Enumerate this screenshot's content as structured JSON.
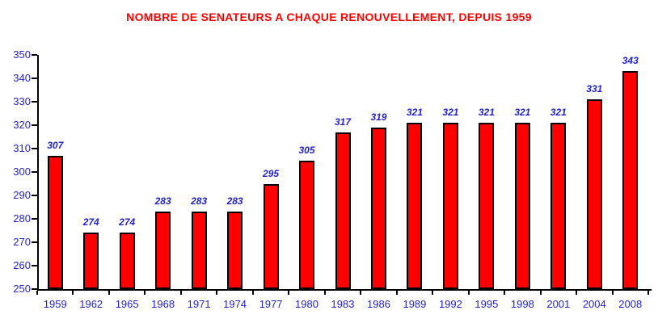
{
  "title": "NOMBRE DE SENATEURS A CHAQUE RENOUVELLEMENT, DEPUIS 1959",
  "chart_data": {
    "type": "bar",
    "title": "NOMBRE DE SENATEURS A CHAQUE RENOUVELLEMENT, DEPUIS 1959",
    "categories": [
      "1959",
      "1962",
      "1965",
      "1968",
      "1971",
      "1974",
      "1977",
      "1980",
      "1983",
      "1986",
      "1989",
      "1992",
      "1995",
      "1998",
      "2001",
      "2004",
      "2008"
    ],
    "values": [
      307,
      274,
      274,
      283,
      283,
      283,
      295,
      305,
      317,
      319,
      321,
      321,
      321,
      321,
      321,
      331,
      343
    ],
    "xlabel": "",
    "ylabel": "",
    "ylim": [
      250,
      350
    ],
    "ytick_step": 10,
    "grid": false,
    "legend": "none",
    "colors": {
      "title": "#ff0000",
      "bar_fill": "#ff0000",
      "bar_border": "#000000",
      "axis": "#000000",
      "tick_labels": "#2222cc",
      "value_labels": "#2222cc",
      "background": "#ffffff"
    }
  }
}
